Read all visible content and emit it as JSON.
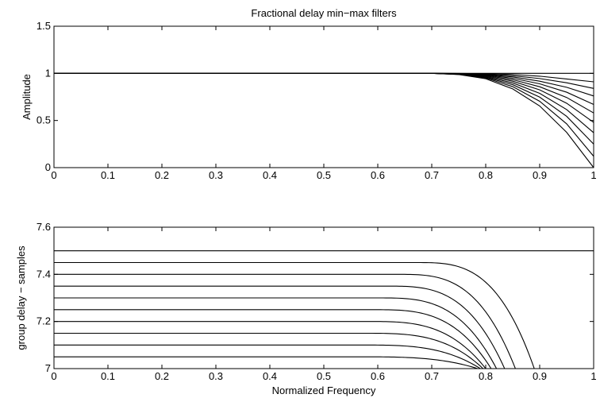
{
  "chart_data": [
    {
      "type": "line",
      "title": "Fractional delay min−max filters",
      "xlabel": "",
      "ylabel": "Amplitude",
      "xlim": [
        0,
        1
      ],
      "ylim": [
        0,
        1.5
      ],
      "xticks": [
        "0",
        "0.1",
        "0.2",
        "0.3",
        "0.4",
        "0.5",
        "0.6",
        "0.7",
        "0.8",
        "0.9",
        "1"
      ],
      "yticks": [
        "0",
        "0.5",
        "1",
        "1.5"
      ],
      "grid": false,
      "x": [
        0,
        0.1,
        0.2,
        0.3,
        0.4,
        0.5,
        0.6,
        0.7,
        0.75,
        0.8,
        0.85,
        0.9,
        0.95,
        1.0
      ],
      "series": [
        {
          "values": [
            1,
            1,
            1,
            1,
            1,
            1,
            1,
            1,
            1,
            1,
            1,
            1,
            1,
            1
          ]
        },
        {
          "values": [
            1,
            1,
            1,
            1,
            1,
            1,
            1,
            1,
            0.999,
            0.996,
            0.988,
            0.97,
            0.94,
            0.91
          ]
        },
        {
          "values": [
            1,
            1,
            1,
            1,
            1,
            1,
            1,
            1,
            0.998,
            0.991,
            0.975,
            0.945,
            0.9,
            0.84
          ]
        },
        {
          "values": [
            1,
            1,
            1,
            1,
            1,
            1,
            1,
            1,
            0.997,
            0.987,
            0.962,
            0.917,
            0.852,
            0.76
          ]
        },
        {
          "values": [
            1,
            1,
            1,
            1,
            1,
            1,
            1,
            1,
            0.996,
            0.982,
            0.948,
            0.889,
            0.8,
            0.67
          ]
        },
        {
          "values": [
            1,
            1,
            1,
            1,
            1,
            1,
            1,
            1,
            0.994,
            0.977,
            0.933,
            0.858,
            0.744,
            0.58
          ]
        },
        {
          "values": [
            1,
            1,
            1,
            1,
            1,
            1,
            1,
            1,
            0.993,
            0.971,
            0.917,
            0.825,
            0.683,
            0.48
          ]
        },
        {
          "values": [
            1,
            1,
            1,
            1,
            1,
            1,
            1,
            1,
            0.992,
            0.965,
            0.899,
            0.788,
            0.616,
            0.37
          ]
        },
        {
          "values": [
            1,
            1,
            1,
            1,
            1,
            1,
            1,
            1,
            0.99,
            0.958,
            0.88,
            0.748,
            0.544,
            0.25
          ]
        },
        {
          "values": [
            1,
            1,
            1,
            1,
            1,
            1,
            1,
            1,
            0.989,
            0.951,
            0.859,
            0.704,
            0.464,
            0.12
          ]
        },
        {
          "values": [
            1,
            1,
            1,
            1,
            1,
            1,
            1,
            1,
            0.987,
            0.943,
            0.835,
            0.654,
            0.374,
            0.0
          ]
        }
      ]
    },
    {
      "type": "line",
      "title": "",
      "xlabel": "Normalized Frequency",
      "ylabel": "group delay − samples",
      "xlim": [
        0,
        1
      ],
      "ylim": [
        7,
        7.6
      ],
      "xticks": [
        "0",
        "0.1",
        "0.2",
        "0.3",
        "0.4",
        "0.5",
        "0.6",
        "0.7",
        "0.8",
        "0.9",
        "1"
      ],
      "yticks": [
        "7",
        "7.2",
        "7.4",
        "7.6"
      ],
      "grid": false,
      "series": [
        {
          "base": 7.5,
          "cutoff": null
        },
        {
          "base": 7.45,
          "cutoff": 0.89
        },
        {
          "base": 7.4,
          "cutoff": 0.855
        },
        {
          "base": 7.35,
          "cutoff": 0.835
        },
        {
          "base": 7.3,
          "cutoff": 0.82
        },
        {
          "base": 7.25,
          "cutoff": 0.81
        },
        {
          "base": 7.2,
          "cutoff": 0.8
        },
        {
          "base": 7.15,
          "cutoff": 0.795
        },
        {
          "base": 7.1,
          "cutoff": 0.79
        },
        {
          "base": 7.05,
          "cutoff": 0.785
        },
        {
          "base": 7.0,
          "cutoff": null
        }
      ]
    }
  ]
}
